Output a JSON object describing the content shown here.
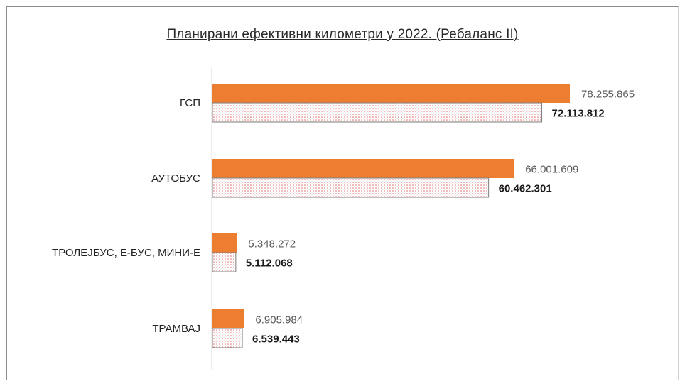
{
  "chart_data": {
    "type": "bar",
    "orientation": "horizontal",
    "title": "Планирани ефективни километри у 2022. (Ребаланс II)",
    "categories": [
      "ГСП",
      "АУТОБУС",
      "ТРОЛЕЈБУС, Е-БУС, МИНИ-Е",
      "ТРАМВАЈ"
    ],
    "series": [
      {
        "values": [
          78255865,
          66001609,
          5348272,
          6905984
        ],
        "labels": [
          "78.255.865",
          "66.001.609",
          "5.348.272",
          "6.905.984"
        ],
        "color": "#ED7D31",
        "pattern": "solid"
      },
      {
        "values": [
          72113812,
          60462301,
          5112068,
          6539443
        ],
        "labels": [
          "72.113.812",
          "60.462.301",
          "5.112.068",
          "6.539.443"
        ],
        "color": "#ffffff",
        "pattern": "dotted",
        "dot_color": "#e06060",
        "border_color": "#7f7f7f"
      }
    ],
    "xlim": [
      0,
      78255865
    ],
    "grid": false,
    "legend": "none"
  }
}
